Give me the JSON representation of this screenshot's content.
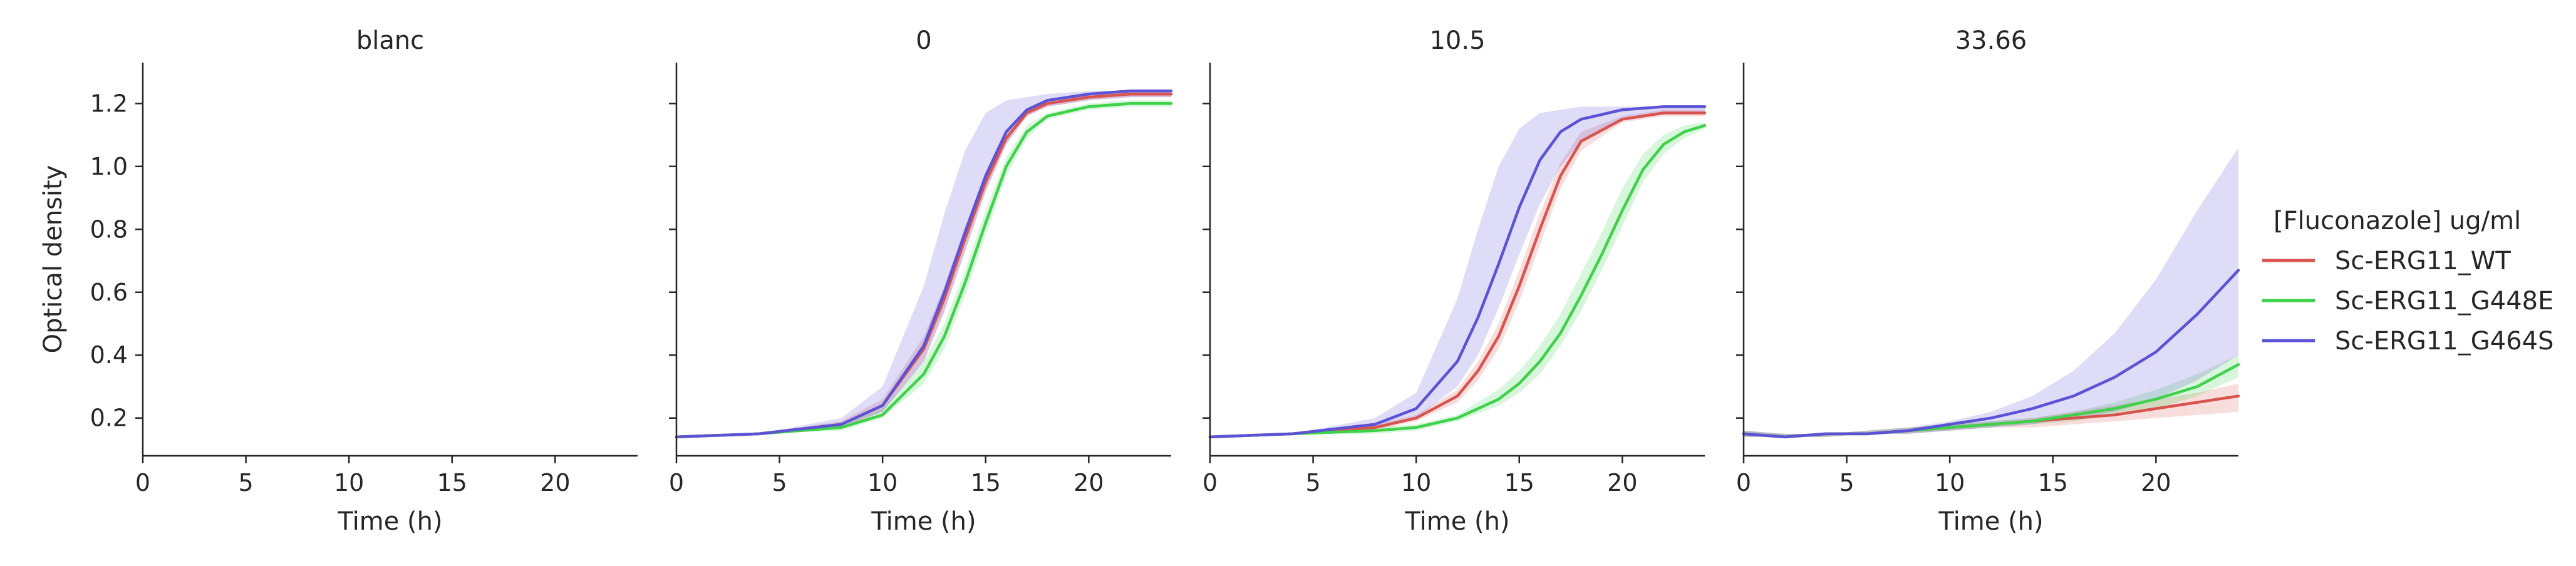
{
  "chart_data": {
    "type": "line",
    "facet_variable": "[Fluconazole] ug/ml",
    "xlabel": "Time (h)",
    "ylabel": "Optical density",
    "xlim": [
      0,
      24
    ],
    "ylim": [
      0.08,
      1.33
    ],
    "x_ticks": [
      "0",
      "5",
      "10",
      "15",
      "20"
    ],
    "y_ticks": [
      "0.2",
      "0.4",
      "0.6",
      "0.8",
      "1.0",
      "1.2"
    ],
    "grid": false,
    "legend": {
      "title": "[Fluconazole] ug/ml",
      "placement": "right",
      "entries": [
        "Sc-ERG11_WT",
        "Sc-ERG11_G448E",
        "Sc-ERG11_G464S"
      ]
    },
    "colors": {
      "Sc-ERG11_WT": "#d9534f",
      "Sc-ERG11_G448E": "#3ed14a",
      "Sc-ERG11_G464S": "#5b52d6"
    },
    "panels": [
      {
        "title": "blanc",
        "series": []
      },
      {
        "title": "0",
        "series": [
          {
            "name": "Sc-ERG11_WT",
            "x": [
              0,
              4,
              8,
              10,
              12,
              13,
              14,
              15,
              16,
              17,
              18,
              20,
              22,
              24
            ],
            "y": [
              0.14,
              0.15,
              0.18,
              0.24,
              0.42,
              0.58,
              0.77,
              0.95,
              1.09,
              1.17,
              1.2,
              1.22,
              1.23,
              1.23
            ],
            "band": {
              "lower": [
                0.14,
                0.15,
                0.17,
                0.22,
                0.38,
                0.54,
                0.73,
                0.92,
                1.07,
                1.16,
                1.19,
                1.21,
                1.22,
                1.22
              ],
              "upper": [
                0.14,
                0.15,
                0.19,
                0.26,
                0.46,
                0.62,
                0.81,
                0.98,
                1.11,
                1.18,
                1.21,
                1.23,
                1.24,
                1.24
              ]
            }
          },
          {
            "name": "Sc-ERG11_G448E",
            "x": [
              0,
              4,
              8,
              10,
              12,
              13,
              14,
              15,
              16,
              17,
              18,
              20,
              22,
              24
            ],
            "y": [
              0.14,
              0.15,
              0.17,
              0.21,
              0.34,
              0.46,
              0.63,
              0.82,
              1.0,
              1.11,
              1.16,
              1.19,
              1.2,
              1.2
            ],
            "band": {
              "lower": [
                0.14,
                0.15,
                0.16,
                0.2,
                0.31,
                0.42,
                0.59,
                0.78,
                0.97,
                1.09,
                1.15,
                1.18,
                1.19,
                1.19
              ],
              "upper": [
                0.14,
                0.15,
                0.18,
                0.23,
                0.38,
                0.5,
                0.67,
                0.86,
                1.03,
                1.13,
                1.17,
                1.2,
                1.21,
                1.21
              ]
            }
          },
          {
            "name": "Sc-ERG11_G464S",
            "x": [
              0,
              4,
              8,
              10,
              12,
              13,
              14,
              15,
              16,
              17,
              18,
              20,
              22,
              24
            ],
            "y": [
              0.14,
              0.15,
              0.18,
              0.24,
              0.43,
              0.6,
              0.79,
              0.97,
              1.11,
              1.18,
              1.21,
              1.23,
              1.24,
              1.24
            ],
            "band": {
              "lower": [
                0.14,
                0.15,
                0.17,
                0.22,
                0.38,
                0.54,
                0.73,
                0.92,
                1.07,
                1.16,
                1.19,
                1.21,
                1.22,
                1.22
              ],
              "upper": [
                0.14,
                0.15,
                0.2,
                0.3,
                0.62,
                0.85,
                1.05,
                1.17,
                1.21,
                1.22,
                1.23,
                1.24,
                1.24,
                1.24
              ]
            }
          }
        ]
      },
      {
        "title": "10.5",
        "series": [
          {
            "name": "Sc-ERG11_WT",
            "x": [
              0,
              4,
              8,
              10,
              12,
              13,
              14,
              15,
              16,
              17,
              18,
              20,
              22,
              24
            ],
            "y": [
              0.14,
              0.15,
              0.17,
              0.2,
              0.27,
              0.35,
              0.46,
              0.62,
              0.8,
              0.97,
              1.08,
              1.15,
              1.17,
              1.17
            ],
            "band": {
              "lower": [
                0.14,
                0.15,
                0.16,
                0.19,
                0.25,
                0.32,
                0.42,
                0.57,
                0.75,
                0.93,
                1.05,
                1.14,
                1.16,
                1.16
              ],
              "upper": [
                0.14,
                0.15,
                0.18,
                0.21,
                0.29,
                0.38,
                0.5,
                0.67,
                0.85,
                1.01,
                1.11,
                1.16,
                1.18,
                1.18
              ]
            }
          },
          {
            "name": "Sc-ERG11_G448E",
            "x": [
              0,
              4,
              8,
              10,
              12,
              14,
              15,
              16,
              17,
              18,
              19,
              20,
              21,
              22,
              23,
              24
            ],
            "y": [
              0.14,
              0.15,
              0.16,
              0.17,
              0.2,
              0.26,
              0.31,
              0.38,
              0.47,
              0.59,
              0.72,
              0.86,
              0.99,
              1.07,
              1.11,
              1.13
            ],
            "band": {
              "lower": [
                0.14,
                0.15,
                0.15,
                0.16,
                0.19,
                0.24,
                0.28,
                0.34,
                0.43,
                0.54,
                0.67,
                0.81,
                0.95,
                1.04,
                1.09,
                1.12
              ],
              "upper": [
                0.14,
                0.15,
                0.17,
                0.18,
                0.21,
                0.29,
                0.35,
                0.43,
                0.53,
                0.66,
                0.79,
                0.93,
                1.04,
                1.1,
                1.13,
                1.14
              ]
            }
          },
          {
            "name": "Sc-ERG11_G464S",
            "x": [
              0,
              4,
              8,
              10,
              12,
              13,
              14,
              15,
              16,
              17,
              18,
              20,
              22,
              24
            ],
            "y": [
              0.14,
              0.15,
              0.18,
              0.23,
              0.38,
              0.52,
              0.69,
              0.87,
              1.02,
              1.11,
              1.15,
              1.18,
              1.19,
              1.19
            ],
            "band": {
              "lower": [
                0.14,
                0.15,
                0.17,
                0.2,
                0.3,
                0.4,
                0.55,
                0.72,
                0.88,
                1.0,
                1.08,
                1.15,
                1.17,
                1.17
              ],
              "upper": [
                0.14,
                0.15,
                0.2,
                0.28,
                0.58,
                0.8,
                1.0,
                1.12,
                1.17,
                1.18,
                1.19,
                1.19,
                1.19,
                1.19
              ]
            }
          }
        ]
      },
      {
        "title": "33.66",
        "series": [
          {
            "name": "Sc-ERG11_WT",
            "x": [
              0,
              2,
              4,
              6,
              8,
              10,
              12,
              14,
              16,
              18,
              20,
              22,
              24
            ],
            "y": [
              0.15,
              0.14,
              0.15,
              0.15,
              0.16,
              0.17,
              0.18,
              0.19,
              0.2,
              0.21,
              0.23,
              0.25,
              0.27
            ],
            "band": {
              "lower": [
                0.14,
                0.14,
                0.14,
                0.15,
                0.15,
                0.16,
                0.17,
                0.17,
                0.18,
                0.19,
                0.2,
                0.21,
                0.22
              ],
              "upper": [
                0.16,
                0.15,
                0.15,
                0.16,
                0.17,
                0.18,
                0.19,
                0.2,
                0.22,
                0.24,
                0.26,
                0.28,
                0.31
              ]
            }
          },
          {
            "name": "Sc-ERG11_G448E",
            "x": [
              0,
              2,
              4,
              6,
              8,
              10,
              12,
              14,
              16,
              18,
              20,
              22,
              24
            ],
            "y": [
              0.15,
              0.14,
              0.15,
              0.15,
              0.16,
              0.17,
              0.18,
              0.19,
              0.21,
              0.23,
              0.26,
              0.3,
              0.37
            ],
            "band": {
              "lower": [
                0.14,
                0.14,
                0.14,
                0.15,
                0.15,
                0.16,
                0.17,
                0.18,
                0.19,
                0.21,
                0.23,
                0.27,
                0.33
              ],
              "upper": [
                0.16,
                0.15,
                0.15,
                0.16,
                0.17,
                0.18,
                0.19,
                0.2,
                0.22,
                0.25,
                0.29,
                0.34,
                0.4
              ]
            }
          },
          {
            "name": "Sc-ERG11_G464S",
            "x": [
              0,
              2,
              4,
              6,
              8,
              10,
              12,
              14,
              16,
              18,
              20,
              22,
              24
            ],
            "y": [
              0.15,
              0.14,
              0.15,
              0.15,
              0.16,
              0.18,
              0.2,
              0.23,
              0.27,
              0.33,
              0.41,
              0.53,
              0.67
            ],
            "band": {
              "lower": [
                0.14,
                0.14,
                0.14,
                0.15,
                0.15,
                0.16,
                0.17,
                0.18,
                0.2,
                0.22,
                0.26,
                0.32,
                0.4
              ],
              "upper": [
                0.16,
                0.15,
                0.15,
                0.16,
                0.17,
                0.19,
                0.22,
                0.27,
                0.35,
                0.47,
                0.64,
                0.86,
                1.06
              ]
            }
          }
        ]
      }
    ]
  }
}
